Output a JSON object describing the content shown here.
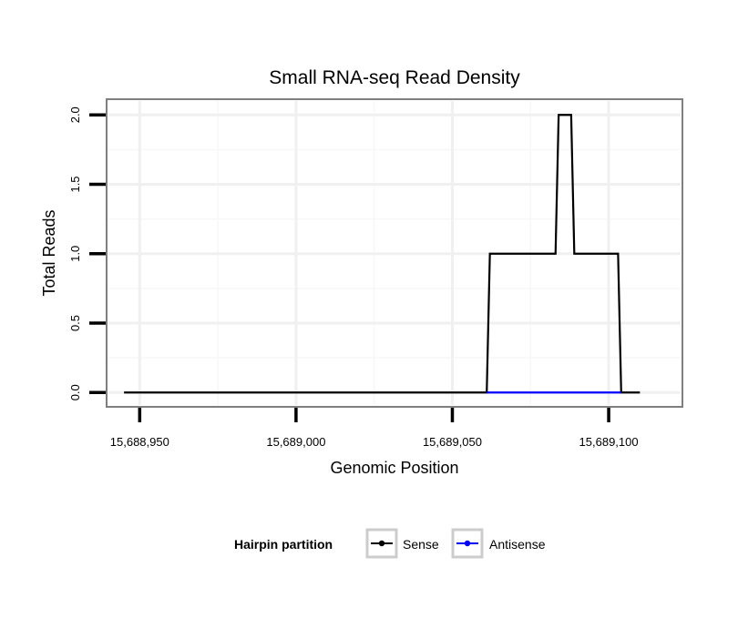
{
  "chart_data": {
    "type": "line",
    "title": "Small RNA-seq Read Density",
    "xlabel": "Genomic Position",
    "ylabel": "Total Reads",
    "xlim": [
      15688940,
      15689123
    ],
    "ylim": [
      -0.09,
      2.1
    ],
    "x_ticks": [
      15688950,
      15689000,
      15689050,
      15689100
    ],
    "x_tick_labels": [
      "15,688,950",
      "15,689,000",
      "15,689,050",
      "15,689,100"
    ],
    "y_ticks": [
      0,
      0.5,
      1,
      1.5,
      2
    ],
    "y_tick_labels": [
      "0.0",
      "0.5",
      "1.0",
      "1.5",
      "2.0"
    ],
    "grid": true,
    "legend": {
      "title": "Hairpin partition",
      "position": "bottom"
    },
    "series": [
      {
        "name": "Sense",
        "color": "#000000",
        "x": [
          15688945,
          15689061,
          15689062,
          15689083,
          15689084,
          15689088,
          15689089,
          15689103,
          15689104,
          15689110
        ],
        "y": [
          0,
          0,
          1,
          1,
          2,
          2,
          1,
          1,
          0,
          0
        ]
      },
      {
        "name": "Antisense",
        "color": "#0000ff",
        "x": [
          15689061,
          15689104
        ],
        "y": [
          0,
          0
        ]
      }
    ]
  }
}
